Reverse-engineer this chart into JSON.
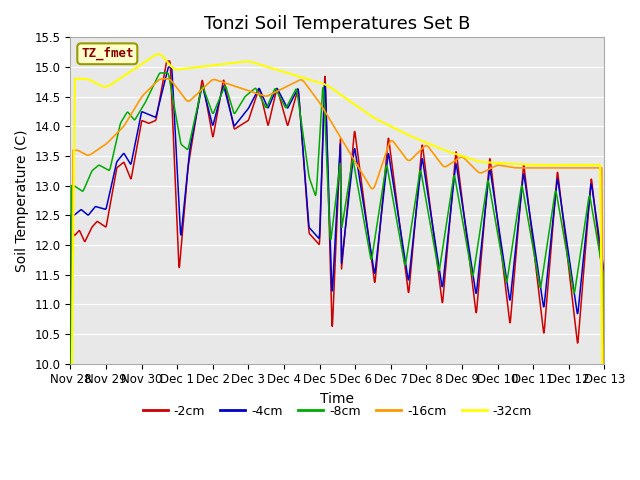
{
  "title": "Tonzi Soil Temperatures Set B",
  "xlabel": "Time",
  "ylabel": "Soil Temperature (C)",
  "ylim": [
    10.0,
    15.5
  ],
  "yticks": [
    10.0,
    10.5,
    11.0,
    11.5,
    12.0,
    12.5,
    13.0,
    13.5,
    14.0,
    14.5,
    15.0,
    15.5
  ],
  "bg_color": "#e8e8e8",
  "legend_label": "TZ_fmet",
  "legend_box_color": "#ffffcc",
  "legend_box_border": "#999900",
  "series": [
    {
      "label": "-2cm",
      "color": "#cc0000"
    },
    {
      "label": "-4cm",
      "color": "#0000cc"
    },
    {
      "label": "-8cm",
      "color": "#00aa00"
    },
    {
      "label": "-16cm",
      "color": "#ff9900"
    },
    {
      "label": "-32cm",
      "color": "#ffff00"
    }
  ],
  "xtick_labels": [
    "Nov 28",
    "Nov 29",
    "Nov 30",
    "Dec 1",
    "Dec 2",
    "Dec 3",
    "Dec 4",
    "Dec 5",
    "Dec 6",
    "Dec 7",
    "Dec 8",
    "Dec 9",
    "Dec 10",
    "Dec 11",
    "Dec 12",
    "Dec 13"
  ],
  "title_fontsize": 13,
  "axis_fontsize": 10,
  "tick_fontsize": 8.5
}
